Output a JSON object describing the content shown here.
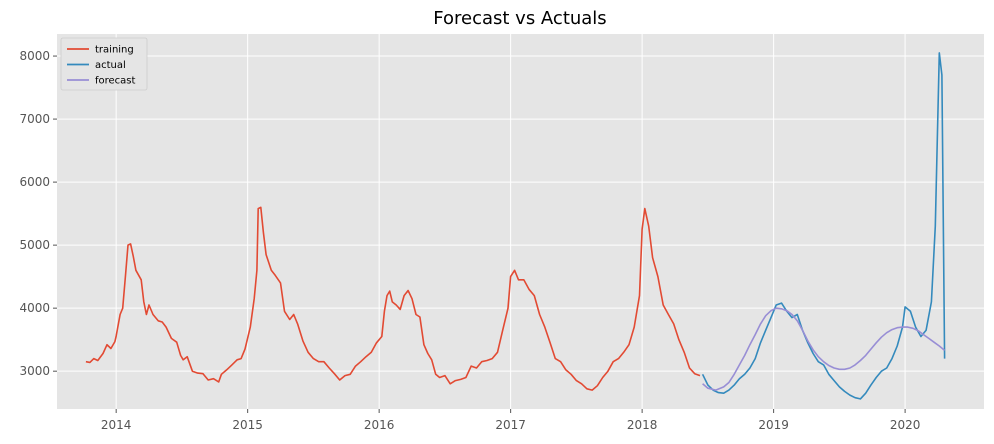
{
  "chart_data": {
    "type": "line",
    "title": "Forecast vs Actuals",
    "xlabel": "",
    "ylabel": "",
    "xlim": [
      2013.55,
      2020.6
    ],
    "ylim": [
      2400,
      8350
    ],
    "x_ticks": [
      2014,
      2015,
      2016,
      2017,
      2018,
      2019,
      2020
    ],
    "x_tick_labels": [
      "2014",
      "2015",
      "2016",
      "2017",
      "2018",
      "2019",
      "2020"
    ],
    "y_ticks": [
      3000,
      4000,
      5000,
      6000,
      7000,
      8000
    ],
    "y_tick_labels": [
      "3000",
      "4000",
      "5000",
      "6000",
      "7000",
      "8000"
    ],
    "grid": true,
    "legend_position": "top-left",
    "series": [
      {
        "name": "training",
        "color": "#e24a33",
        "points": [
          [
            2013.77,
            3150
          ],
          [
            2013.8,
            3140
          ],
          [
            2013.83,
            3200
          ],
          [
            2013.86,
            3170
          ],
          [
            2013.9,
            3280
          ],
          [
            2013.93,
            3420
          ],
          [
            2013.96,
            3360
          ],
          [
            2013.99,
            3470
          ],
          [
            2014.0,
            3560
          ],
          [
            2014.03,
            3900
          ],
          [
            2014.05,
            4000
          ],
          [
            2014.07,
            4500
          ],
          [
            2014.09,
            5000
          ],
          [
            2014.11,
            5020
          ],
          [
            2014.13,
            4820
          ],
          [
            2014.15,
            4600
          ],
          [
            2014.19,
            4450
          ],
          [
            2014.21,
            4100
          ],
          [
            2014.23,
            3900
          ],
          [
            2014.25,
            4050
          ],
          [
            2014.28,
            3900
          ],
          [
            2014.32,
            3800
          ],
          [
            2014.35,
            3780
          ],
          [
            2014.38,
            3700
          ],
          [
            2014.42,
            3520
          ],
          [
            2014.46,
            3460
          ],
          [
            2014.49,
            3250
          ],
          [
            2014.51,
            3180
          ],
          [
            2014.54,
            3230
          ],
          [
            2014.58,
            3000
          ],
          [
            2014.62,
            2970
          ],
          [
            2014.66,
            2960
          ],
          [
            2014.7,
            2860
          ],
          [
            2014.74,
            2880
          ],
          [
            2014.78,
            2830
          ],
          [
            2014.8,
            2950
          ],
          [
            2014.84,
            3020
          ],
          [
            2014.88,
            3100
          ],
          [
            2014.92,
            3180
          ],
          [
            2014.95,
            3200
          ],
          [
            2014.98,
            3350
          ],
          [
            2015.02,
            3700
          ],
          [
            2015.05,
            4150
          ],
          [
            2015.07,
            4600
          ],
          [
            2015.08,
            5580
          ],
          [
            2015.1,
            5600
          ],
          [
            2015.12,
            5200
          ],
          [
            2015.14,
            4850
          ],
          [
            2015.18,
            4600
          ],
          [
            2015.21,
            4520
          ],
          [
            2015.25,
            4400
          ],
          [
            2015.28,
            3950
          ],
          [
            2015.32,
            3820
          ],
          [
            2015.35,
            3900
          ],
          [
            2015.38,
            3750
          ],
          [
            2015.42,
            3480
          ],
          [
            2015.46,
            3300
          ],
          [
            2015.5,
            3200
          ],
          [
            2015.54,
            3150
          ],
          [
            2015.58,
            3150
          ],
          [
            2015.62,
            3050
          ],
          [
            2015.66,
            2960
          ],
          [
            2015.7,
            2860
          ],
          [
            2015.74,
            2930
          ],
          [
            2015.78,
            2950
          ],
          [
            2015.82,
            3080
          ],
          [
            2015.86,
            3150
          ],
          [
            2015.9,
            3230
          ],
          [
            2015.94,
            3300
          ],
          [
            2015.98,
            3450
          ],
          [
            2016.02,
            3550
          ],
          [
            2016.04,
            3950
          ],
          [
            2016.06,
            4200
          ],
          [
            2016.08,
            4270
          ],
          [
            2016.1,
            4100
          ],
          [
            2016.13,
            4050
          ],
          [
            2016.16,
            3980
          ],
          [
            2016.19,
            4200
          ],
          [
            2016.22,
            4280
          ],
          [
            2016.25,
            4150
          ],
          [
            2016.28,
            3900
          ],
          [
            2016.31,
            3860
          ],
          [
            2016.34,
            3420
          ],
          [
            2016.37,
            3280
          ],
          [
            2016.4,
            3180
          ],
          [
            2016.43,
            2950
          ],
          [
            2016.46,
            2900
          ],
          [
            2016.5,
            2930
          ],
          [
            2016.54,
            2800
          ],
          [
            2016.58,
            2850
          ],
          [
            2016.62,
            2870
          ],
          [
            2016.66,
            2900
          ],
          [
            2016.7,
            3080
          ],
          [
            2016.74,
            3050
          ],
          [
            2016.78,
            3150
          ],
          [
            2016.82,
            3170
          ],
          [
            2016.86,
            3200
          ],
          [
            2016.9,
            3300
          ],
          [
            2016.94,
            3650
          ],
          [
            2016.98,
            4000
          ],
          [
            2017.0,
            4500
          ],
          [
            2017.03,
            4600
          ],
          [
            2017.06,
            4450
          ],
          [
            2017.1,
            4450
          ],
          [
            2017.14,
            4300
          ],
          [
            2017.18,
            4200
          ],
          [
            2017.22,
            3900
          ],
          [
            2017.26,
            3700
          ],
          [
            2017.3,
            3450
          ],
          [
            2017.34,
            3200
          ],
          [
            2017.38,
            3150
          ],
          [
            2017.42,
            3020
          ],
          [
            2017.46,
            2950
          ],
          [
            2017.5,
            2850
          ],
          [
            2017.54,
            2800
          ],
          [
            2017.58,
            2720
          ],
          [
            2017.62,
            2700
          ],
          [
            2017.66,
            2770
          ],
          [
            2017.7,
            2900
          ],
          [
            2017.74,
            3000
          ],
          [
            2017.78,
            3150
          ],
          [
            2017.82,
            3200
          ],
          [
            2017.86,
            3300
          ],
          [
            2017.9,
            3420
          ],
          [
            2017.94,
            3700
          ],
          [
            2017.98,
            4200
          ],
          [
            2018.0,
            5250
          ],
          [
            2018.02,
            5580
          ],
          [
            2018.05,
            5300
          ],
          [
            2018.08,
            4800
          ],
          [
            2018.12,
            4500
          ],
          [
            2018.16,
            4050
          ],
          [
            2018.2,
            3900
          ],
          [
            2018.24,
            3750
          ],
          [
            2018.28,
            3500
          ],
          [
            2018.32,
            3300
          ],
          [
            2018.36,
            3050
          ],
          [
            2018.4,
            2960
          ],
          [
            2018.44,
            2930
          ]
        ]
      },
      {
        "name": "actual",
        "color": "#348abd",
        "points": [
          [
            2018.46,
            2950
          ],
          [
            2018.5,
            2780
          ],
          [
            2018.54,
            2700
          ],
          [
            2018.58,
            2660
          ],
          [
            2018.62,
            2650
          ],
          [
            2018.66,
            2700
          ],
          [
            2018.7,
            2780
          ],
          [
            2018.74,
            2880
          ],
          [
            2018.78,
            2950
          ],
          [
            2018.82,
            3050
          ],
          [
            2018.86,
            3200
          ],
          [
            2018.9,
            3450
          ],
          [
            2018.94,
            3650
          ],
          [
            2018.98,
            3850
          ],
          [
            2019.02,
            4050
          ],
          [
            2019.06,
            4080
          ],
          [
            2019.1,
            3950
          ],
          [
            2019.14,
            3850
          ],
          [
            2019.18,
            3900
          ],
          [
            2019.22,
            3650
          ],
          [
            2019.26,
            3450
          ],
          [
            2019.3,
            3280
          ],
          [
            2019.34,
            3150
          ],
          [
            2019.38,
            3100
          ],
          [
            2019.42,
            2950
          ],
          [
            2019.46,
            2850
          ],
          [
            2019.5,
            2750
          ],
          [
            2019.54,
            2680
          ],
          [
            2019.58,
            2620
          ],
          [
            2019.62,
            2580
          ],
          [
            2019.66,
            2560
          ],
          [
            2019.7,
            2650
          ],
          [
            2019.74,
            2780
          ],
          [
            2019.78,
            2900
          ],
          [
            2019.82,
            3000
          ],
          [
            2019.86,
            3050
          ],
          [
            2019.9,
            3200
          ],
          [
            2019.94,
            3400
          ],
          [
            2019.98,
            3700
          ],
          [
            2020.0,
            4020
          ],
          [
            2020.04,
            3950
          ],
          [
            2020.08,
            3700
          ],
          [
            2020.12,
            3550
          ],
          [
            2020.16,
            3650
          ],
          [
            2020.2,
            4100
          ],
          [
            2020.23,
            5300
          ],
          [
            2020.26,
            8050
          ],
          [
            2020.28,
            7700
          ],
          [
            2020.3,
            3200
          ]
        ]
      },
      {
        "name": "forecast",
        "color": "#988ed5",
        "points": [
          [
            2018.46,
            2800
          ],
          [
            2018.5,
            2730
          ],
          [
            2018.56,
            2700
          ],
          [
            2018.62,
            2750
          ],
          [
            2018.66,
            2820
          ],
          [
            2018.7,
            2950
          ],
          [
            2018.74,
            3100
          ],
          [
            2018.78,
            3250
          ],
          [
            2018.82,
            3420
          ],
          [
            2018.86,
            3580
          ],
          [
            2018.9,
            3750
          ],
          [
            2018.94,
            3880
          ],
          [
            2018.98,
            3960
          ],
          [
            2019.02,
            4000
          ],
          [
            2019.06,
            3990
          ],
          [
            2019.1,
            3960
          ],
          [
            2019.14,
            3900
          ],
          [
            2019.18,
            3800
          ],
          [
            2019.22,
            3650
          ],
          [
            2019.26,
            3480
          ],
          [
            2019.3,
            3340
          ],
          [
            2019.34,
            3230
          ],
          [
            2019.38,
            3150
          ],
          [
            2019.42,
            3090
          ],
          [
            2019.46,
            3050
          ],
          [
            2019.5,
            3030
          ],
          [
            2019.54,
            3030
          ],
          [
            2019.58,
            3050
          ],
          [
            2019.62,
            3100
          ],
          [
            2019.66,
            3170
          ],
          [
            2019.7,
            3250
          ],
          [
            2019.74,
            3350
          ],
          [
            2019.78,
            3450
          ],
          [
            2019.82,
            3540
          ],
          [
            2019.86,
            3610
          ],
          [
            2019.9,
            3660
          ],
          [
            2019.94,
            3690
          ],
          [
            2019.98,
            3700
          ],
          [
            2020.02,
            3700
          ],
          [
            2020.06,
            3680
          ],
          [
            2020.1,
            3640
          ],
          [
            2020.14,
            3580
          ],
          [
            2020.18,
            3520
          ],
          [
            2020.22,
            3460
          ],
          [
            2020.26,
            3400
          ],
          [
            2020.3,
            3330
          ]
        ]
      }
    ]
  }
}
